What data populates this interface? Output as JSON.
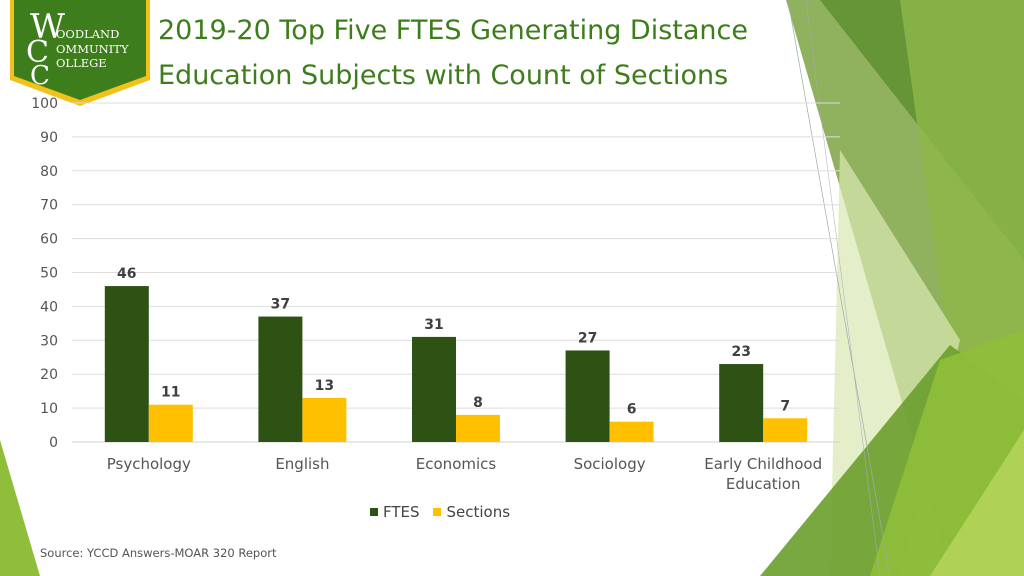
{
  "logo": {
    "lines": [
      "OODLAND",
      "OMMUNITY",
      "OLLEGE"
    ],
    "initials": [
      "W",
      "C",
      "C"
    ]
  },
  "title": "2019-20 Top Five FTES Generating Distance\nEducation Subjects with Count of Sections",
  "source": "Source: YCCD Answers-MOAR 320 Report",
  "colors": {
    "fтes": "#2e5214",
    "sections": "#ffc000",
    "title": "#3e7d1c"
  },
  "chart_data": {
    "type": "bar",
    "categories": [
      "Psychology",
      "English",
      "Economics",
      "Sociology",
      "Early Childhood Education"
    ],
    "series": [
      {
        "name": "FTES",
        "values": [
          46,
          37,
          31,
          27,
          23
        ],
        "color": "#2e5214"
      },
      {
        "name": "Sections",
        "values": [
          11,
          13,
          8,
          6,
          7
        ],
        "color": "#ffc000"
      }
    ],
    "ylim": [
      0,
      100
    ],
    "yticks": [
      0,
      10,
      20,
      30,
      40,
      50,
      60,
      70,
      80,
      90,
      100
    ],
    "grid": true,
    "legend": "bottom",
    "data_labels": true
  }
}
